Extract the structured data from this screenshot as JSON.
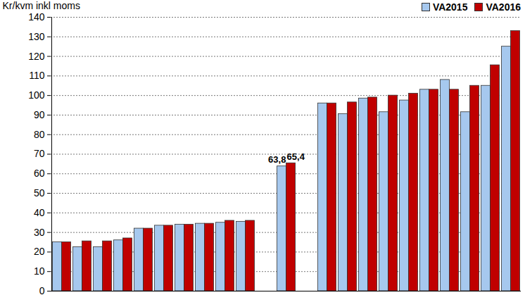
{
  "chart_data": {
    "type": "bar",
    "ylabel": "Kr/kvm inkl moms",
    "categories": [
      null,
      null,
      null,
      null,
      null,
      null,
      null,
      null,
      null,
      null,
      null,
      null,
      null,
      null,
      null,
      null,
      null,
      null,
      null,
      null,
      null,
      null,
      null
    ],
    "series": [
      {
        "name": "VA2015",
        "color": "#a6c8ee",
        "values": [
          25,
          22.5,
          22.5,
          26,
          32,
          33.5,
          34,
          34.5,
          35,
          35.5,
          null,
          63.8,
          null,
          96,
          90.5,
          98.5,
          91.5,
          97.5,
          103,
          108,
          91.5,
          105,
          125
        ],
        "value_labels": [
          null,
          null,
          null,
          null,
          null,
          null,
          null,
          null,
          null,
          null,
          null,
          "63,8",
          null,
          null,
          null,
          null,
          null,
          null,
          null,
          null,
          null,
          null,
          null
        ]
      },
      {
        "name": "VA2016",
        "color": "#c00000",
        "values": [
          25,
          25.5,
          25.5,
          27,
          32,
          33.5,
          34,
          34.5,
          36,
          36,
          null,
          65.4,
          null,
          96,
          96.5,
          99,
          100,
          101,
          103,
          103,
          105,
          115.5,
          133
        ],
        "value_labels": [
          null,
          null,
          null,
          null,
          null,
          null,
          null,
          null,
          null,
          null,
          null,
          "65,4",
          null,
          null,
          null,
          null,
          null,
          null,
          null,
          null,
          null,
          null,
          null
        ]
      }
    ],
    "ylim": [
      0,
      140
    ],
    "yticks": [
      0,
      10,
      20,
      30,
      40,
      50,
      60,
      70,
      80,
      90,
      100,
      110,
      120,
      130,
      140
    ],
    "grid": true,
    "legend": "top right",
    "data_labels": true
  }
}
